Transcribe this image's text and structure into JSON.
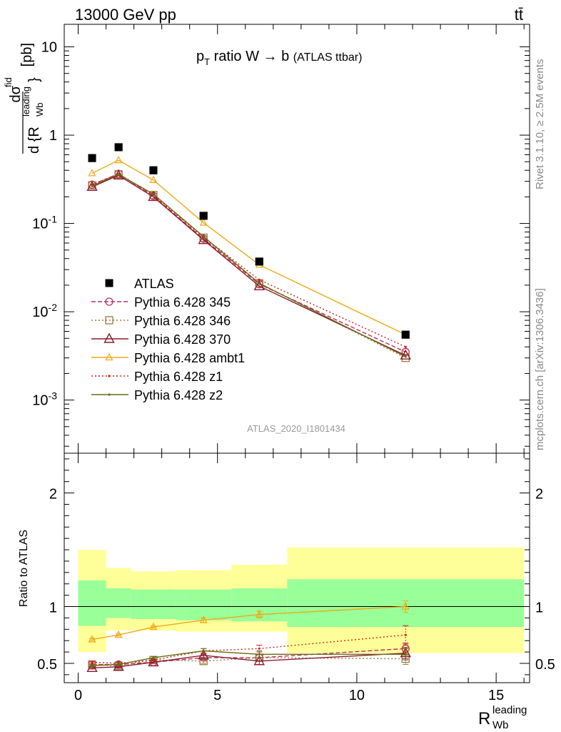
{
  "header": {
    "left": "13000 GeV pp",
    "right": "tt̄"
  },
  "side_labels": {
    "rivet": "Rivet 3.1.10, ≥ 2.5M events",
    "mcplots": "mcplots.cern.ch [arXiv:1306.3436]"
  },
  "colors": {
    "atlas": "#000000",
    "p345": "#b5325f",
    "p346": "#9b7a3c",
    "p370": "#8b1a2e",
    "ambt1": "#f0a818",
    "z1": "#d42020",
    "z2": "#6b6b14",
    "band_inner": "#99ff99",
    "band_outer": "#ffff99"
  },
  "chart_data": [
    {
      "type": "scatter",
      "panel": "main",
      "title": "pT ratio W → b (ATLAS ttbar)",
      "title_parts": {
        "p": "p",
        "sub": "T",
        "rest": " ratio W → b",
        "small": "(ATLAS ttbar)"
      },
      "ylabel": "d σ^fid / d {R_Wb^leading} [pb]",
      "ylabel_parts": {
        "num": "dσ",
        "num_sup": "fid",
        "den": "d {R",
        "den_sup": "leading",
        "den_sub": "Wb",
        "den_end": "}",
        "unit": "[pb]"
      },
      "yscale": "log",
      "ylim": [
        0.00025,
        18
      ],
      "xlim": [
        -0.5,
        16.2
      ],
      "y_tick_labels": [
        "10",
        "1",
        "10^-1",
        "10^-2",
        "10^-3"
      ],
      "watermark": "ATLAS_2020_I1801434",
      "legend_position": "center-left",
      "x": [
        0.5,
        1.45,
        2.7,
        4.5,
        6.5,
        11.75
      ],
      "series": [
        {
          "name": "ATLAS",
          "values": [
            0.55,
            0.73,
            0.4,
            0.122,
            0.037,
            0.0055
          ]
        },
        {
          "name": "Pythia 6.428 345",
          "values": [
            0.275,
            0.365,
            0.205,
            0.067,
            0.0205,
            0.0035
          ]
        },
        {
          "name": "Pythia 6.428 346",
          "values": [
            0.27,
            0.36,
            0.21,
            0.069,
            0.021,
            0.003
          ]
        },
        {
          "name": "Pythia 6.428 370",
          "values": [
            0.26,
            0.35,
            0.2,
            0.065,
            0.0195,
            0.0032
          ]
        },
        {
          "name": "Pythia 6.428 ambt1",
          "values": [
            0.37,
            0.52,
            0.31,
            0.102,
            0.034,
            0.0055
          ]
        },
        {
          "name": "Pythia 6.428 z1",
          "values": [
            0.275,
            0.365,
            0.21,
            0.07,
            0.023,
            0.004
          ]
        },
        {
          "name": "Pythia 6.428 z2",
          "values": [
            0.265,
            0.36,
            0.215,
            0.071,
            0.021,
            0.0031
          ]
        }
      ]
    },
    {
      "type": "scatter",
      "panel": "ratio",
      "ylabel": "Ratio to ATLAS",
      "xlabel": "R_Wb^leading",
      "xlabel_parts": {
        "main": "R",
        "sup": "leading",
        "sub": "Wb"
      },
      "ylim": [
        0.33,
        2.35
      ],
      "xlim": [
        -0.5,
        16.2
      ],
      "x_tick_labels": [
        "0",
        "5",
        "10",
        "15"
      ],
      "y_tick_labels": [
        "0.5",
        "1",
        "2"
      ],
      "bins": [
        {
          "lo": 0,
          "hi": 1,
          "inner": [
            0.83,
            1.23
          ],
          "outer": [
            0.6,
            1.5
          ]
        },
        {
          "lo": 1,
          "hi": 1.9,
          "inner": [
            0.9,
            1.16
          ],
          "outer": [
            0.79,
            1.34
          ]
        },
        {
          "lo": 1.9,
          "hi": 3.5,
          "inner": [
            0.89,
            1.15
          ],
          "outer": [
            0.79,
            1.31
          ]
        },
        {
          "lo": 3.5,
          "hi": 5.5,
          "inner": [
            0.88,
            1.15
          ],
          "outer": [
            0.78,
            1.32
          ]
        },
        {
          "lo": 5.5,
          "hi": 7.5,
          "inner": [
            0.87,
            1.16
          ],
          "outer": [
            0.78,
            1.37
          ]
        },
        {
          "lo": 7.5,
          "hi": 16,
          "inner": [
            0.82,
            1.24
          ],
          "outer": [
            0.59,
            1.52
          ]
        }
      ],
      "x": [
        0.5,
        1.45,
        2.7,
        4.5,
        6.5,
        11.75
      ],
      "series": [
        {
          "name": "Pythia 6.428 345",
          "values": [
            0.49,
            0.49,
            0.51,
            0.55,
            0.55,
            0.63
          ],
          "err": [
            0.01,
            0.01,
            0.01,
            0.02,
            0.03,
            0.05
          ]
        },
        {
          "name": "Pythia 6.428 346",
          "values": [
            0.49,
            0.48,
            0.53,
            0.52,
            0.55,
            0.54
          ],
          "err": [
            0.01,
            0.01,
            0.01,
            0.02,
            0.03,
            0.05
          ]
        },
        {
          "name": "Pythia 6.428 370",
          "values": [
            0.46,
            0.47,
            0.51,
            0.57,
            0.52,
            0.59
          ],
          "err": [
            0.01,
            0.01,
            0.01,
            0.02,
            0.03,
            0.05
          ]
        },
        {
          "name": "Pythia 6.428 ambt1",
          "values": [
            0.71,
            0.75,
            0.82,
            0.88,
            0.93,
            1.0
          ],
          "err": [
            0.01,
            0.01,
            0.01,
            0.02,
            0.03,
            0.05
          ]
        },
        {
          "name": "Pythia 6.428 z1",
          "values": [
            0.51,
            0.5,
            0.53,
            0.61,
            0.63,
            0.75
          ],
          "err": [
            0.01,
            0.01,
            0.01,
            0.02,
            0.03,
            0.08
          ]
        },
        {
          "name": "Pythia 6.428 z2",
          "values": [
            0.48,
            0.49,
            0.55,
            0.61,
            0.58,
            0.58
          ],
          "err": [
            0.01,
            0.01,
            0.01,
            0.02,
            0.03,
            0.05
          ]
        }
      ]
    }
  ]
}
